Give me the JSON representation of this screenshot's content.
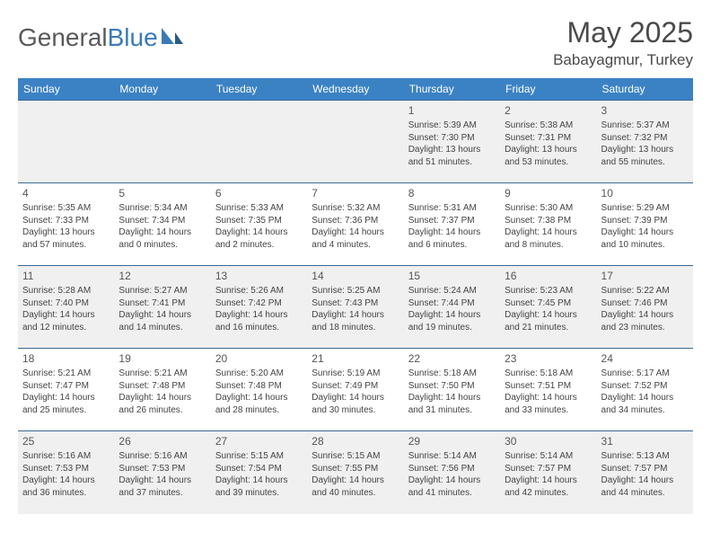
{
  "logo": {
    "text1": "General",
    "text2": "Blue"
  },
  "title": "May 2025",
  "location": "Babayagmur, Turkey",
  "headers": [
    "Sunday",
    "Monday",
    "Tuesday",
    "Wednesday",
    "Thursday",
    "Friday",
    "Saturday"
  ],
  "colors": {
    "header_bg": "#3b82c4",
    "header_text": "#ffffff",
    "row_alt_bg": "#f0f0f0",
    "border": "#3b6a94",
    "logo_blue": "#3a7ab8",
    "text": "#444444"
  },
  "weeks": [
    [
      {
        "n": "",
        "lines": []
      },
      {
        "n": "",
        "lines": []
      },
      {
        "n": "",
        "lines": []
      },
      {
        "n": "",
        "lines": []
      },
      {
        "n": "1",
        "lines": [
          "Sunrise: 5:39 AM",
          "Sunset: 7:30 PM",
          "Daylight: 13 hours and 51 minutes."
        ]
      },
      {
        "n": "2",
        "lines": [
          "Sunrise: 5:38 AM",
          "Sunset: 7:31 PM",
          "Daylight: 13 hours and 53 minutes."
        ]
      },
      {
        "n": "3",
        "lines": [
          "Sunrise: 5:37 AM",
          "Sunset: 7:32 PM",
          "Daylight: 13 hours and 55 minutes."
        ]
      }
    ],
    [
      {
        "n": "4",
        "lines": [
          "Sunrise: 5:35 AM",
          "Sunset: 7:33 PM",
          "Daylight: 13 hours and 57 minutes."
        ]
      },
      {
        "n": "5",
        "lines": [
          "Sunrise: 5:34 AM",
          "Sunset: 7:34 PM",
          "Daylight: 14 hours and 0 minutes."
        ]
      },
      {
        "n": "6",
        "lines": [
          "Sunrise: 5:33 AM",
          "Sunset: 7:35 PM",
          "Daylight: 14 hours and 2 minutes."
        ]
      },
      {
        "n": "7",
        "lines": [
          "Sunrise: 5:32 AM",
          "Sunset: 7:36 PM",
          "Daylight: 14 hours and 4 minutes."
        ]
      },
      {
        "n": "8",
        "lines": [
          "Sunrise: 5:31 AM",
          "Sunset: 7:37 PM",
          "Daylight: 14 hours and 6 minutes."
        ]
      },
      {
        "n": "9",
        "lines": [
          "Sunrise: 5:30 AM",
          "Sunset: 7:38 PM",
          "Daylight: 14 hours and 8 minutes."
        ]
      },
      {
        "n": "10",
        "lines": [
          "Sunrise: 5:29 AM",
          "Sunset: 7:39 PM",
          "Daylight: 14 hours and 10 minutes."
        ]
      }
    ],
    [
      {
        "n": "11",
        "lines": [
          "Sunrise: 5:28 AM",
          "Sunset: 7:40 PM",
          "Daylight: 14 hours and 12 minutes."
        ]
      },
      {
        "n": "12",
        "lines": [
          "Sunrise: 5:27 AM",
          "Sunset: 7:41 PM",
          "Daylight: 14 hours and 14 minutes."
        ]
      },
      {
        "n": "13",
        "lines": [
          "Sunrise: 5:26 AM",
          "Sunset: 7:42 PM",
          "Daylight: 14 hours and 16 minutes."
        ]
      },
      {
        "n": "14",
        "lines": [
          "Sunrise: 5:25 AM",
          "Sunset: 7:43 PM",
          "Daylight: 14 hours and 18 minutes."
        ]
      },
      {
        "n": "15",
        "lines": [
          "Sunrise: 5:24 AM",
          "Sunset: 7:44 PM",
          "Daylight: 14 hours and 19 minutes."
        ]
      },
      {
        "n": "16",
        "lines": [
          "Sunrise: 5:23 AM",
          "Sunset: 7:45 PM",
          "Daylight: 14 hours and 21 minutes."
        ]
      },
      {
        "n": "17",
        "lines": [
          "Sunrise: 5:22 AM",
          "Sunset: 7:46 PM",
          "Daylight: 14 hours and 23 minutes."
        ]
      }
    ],
    [
      {
        "n": "18",
        "lines": [
          "Sunrise: 5:21 AM",
          "Sunset: 7:47 PM",
          "Daylight: 14 hours and 25 minutes."
        ]
      },
      {
        "n": "19",
        "lines": [
          "Sunrise: 5:21 AM",
          "Sunset: 7:48 PM",
          "Daylight: 14 hours and 26 minutes."
        ]
      },
      {
        "n": "20",
        "lines": [
          "Sunrise: 5:20 AM",
          "Sunset: 7:48 PM",
          "Daylight: 14 hours and 28 minutes."
        ]
      },
      {
        "n": "21",
        "lines": [
          "Sunrise: 5:19 AM",
          "Sunset: 7:49 PM",
          "Daylight: 14 hours and 30 minutes."
        ]
      },
      {
        "n": "22",
        "lines": [
          "Sunrise: 5:18 AM",
          "Sunset: 7:50 PM",
          "Daylight: 14 hours and 31 minutes."
        ]
      },
      {
        "n": "23",
        "lines": [
          "Sunrise: 5:18 AM",
          "Sunset: 7:51 PM",
          "Daylight: 14 hours and 33 minutes."
        ]
      },
      {
        "n": "24",
        "lines": [
          "Sunrise: 5:17 AM",
          "Sunset: 7:52 PM",
          "Daylight: 14 hours and 34 minutes."
        ]
      }
    ],
    [
      {
        "n": "25",
        "lines": [
          "Sunrise: 5:16 AM",
          "Sunset: 7:53 PM",
          "Daylight: 14 hours and 36 minutes."
        ]
      },
      {
        "n": "26",
        "lines": [
          "Sunrise: 5:16 AM",
          "Sunset: 7:53 PM",
          "Daylight: 14 hours and 37 minutes."
        ]
      },
      {
        "n": "27",
        "lines": [
          "Sunrise: 5:15 AM",
          "Sunset: 7:54 PM",
          "Daylight: 14 hours and 39 minutes."
        ]
      },
      {
        "n": "28",
        "lines": [
          "Sunrise: 5:15 AM",
          "Sunset: 7:55 PM",
          "Daylight: 14 hours and 40 minutes."
        ]
      },
      {
        "n": "29",
        "lines": [
          "Sunrise: 5:14 AM",
          "Sunset: 7:56 PM",
          "Daylight: 14 hours and 41 minutes."
        ]
      },
      {
        "n": "30",
        "lines": [
          "Sunrise: 5:14 AM",
          "Sunset: 7:57 PM",
          "Daylight: 14 hours and 42 minutes."
        ]
      },
      {
        "n": "31",
        "lines": [
          "Sunrise: 5:13 AM",
          "Sunset: 7:57 PM",
          "Daylight: 14 hours and 44 minutes."
        ]
      }
    ]
  ]
}
